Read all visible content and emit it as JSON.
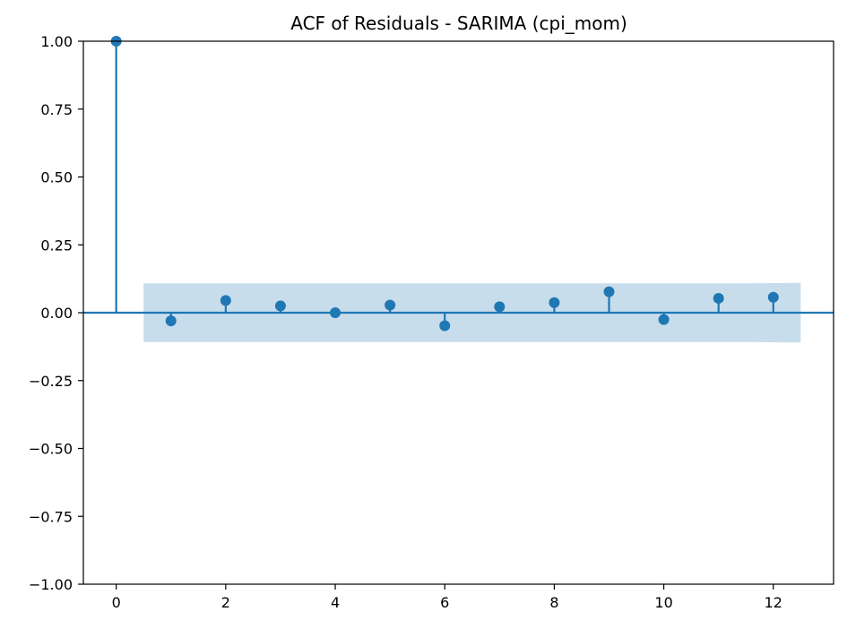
{
  "chart_data": {
    "type": "stem",
    "title": "ACF of Residuals - SARIMA (cpi_mom)",
    "xlabel": "",
    "ylabel": "",
    "x": [
      0,
      1,
      2,
      3,
      4,
      5,
      6,
      7,
      8,
      9,
      10,
      11,
      12
    ],
    "values": [
      1.0,
      -0.03,
      0.045,
      0.025,
      0.0,
      0.028,
      -0.048,
      0.022,
      0.037,
      0.077,
      -0.025,
      0.053,
      0.057
    ],
    "confidence_band": {
      "x_range": [
        0.5,
        12.5
      ],
      "upper": [
        0.108,
        0.108,
        0.108,
        0.108,
        0.108,
        0.108,
        0.108,
        0.108,
        0.108,
        0.108,
        0.108,
        0.108,
        0.11
      ],
      "lower": [
        -0.108,
        -0.108,
        -0.108,
        -0.108,
        -0.108,
        -0.108,
        -0.108,
        -0.108,
        -0.108,
        -0.108,
        -0.108,
        -0.108,
        -0.11
      ]
    },
    "xlim": [
      -0.6,
      13.1
    ],
    "ylim": [
      -1.0,
      1.0
    ],
    "xticks": [
      0,
      2,
      4,
      6,
      8,
      10,
      12
    ],
    "yticks": [
      -1.0,
      -0.75,
      -0.5,
      -0.25,
      0.0,
      0.25,
      0.5,
      0.75,
      1.0
    ],
    "xtick_labels": [
      "0",
      "2",
      "4",
      "6",
      "8",
      "10",
      "12"
    ],
    "ytick_labels": [
      "−1.00",
      "−0.75",
      "−0.50",
      "−0.25",
      "0.00",
      "0.25",
      "0.50",
      "0.75",
      "1.00"
    ],
    "grid": false,
    "colors": {
      "stem": "#1f77b4",
      "band": "#1f77b4"
    }
  }
}
